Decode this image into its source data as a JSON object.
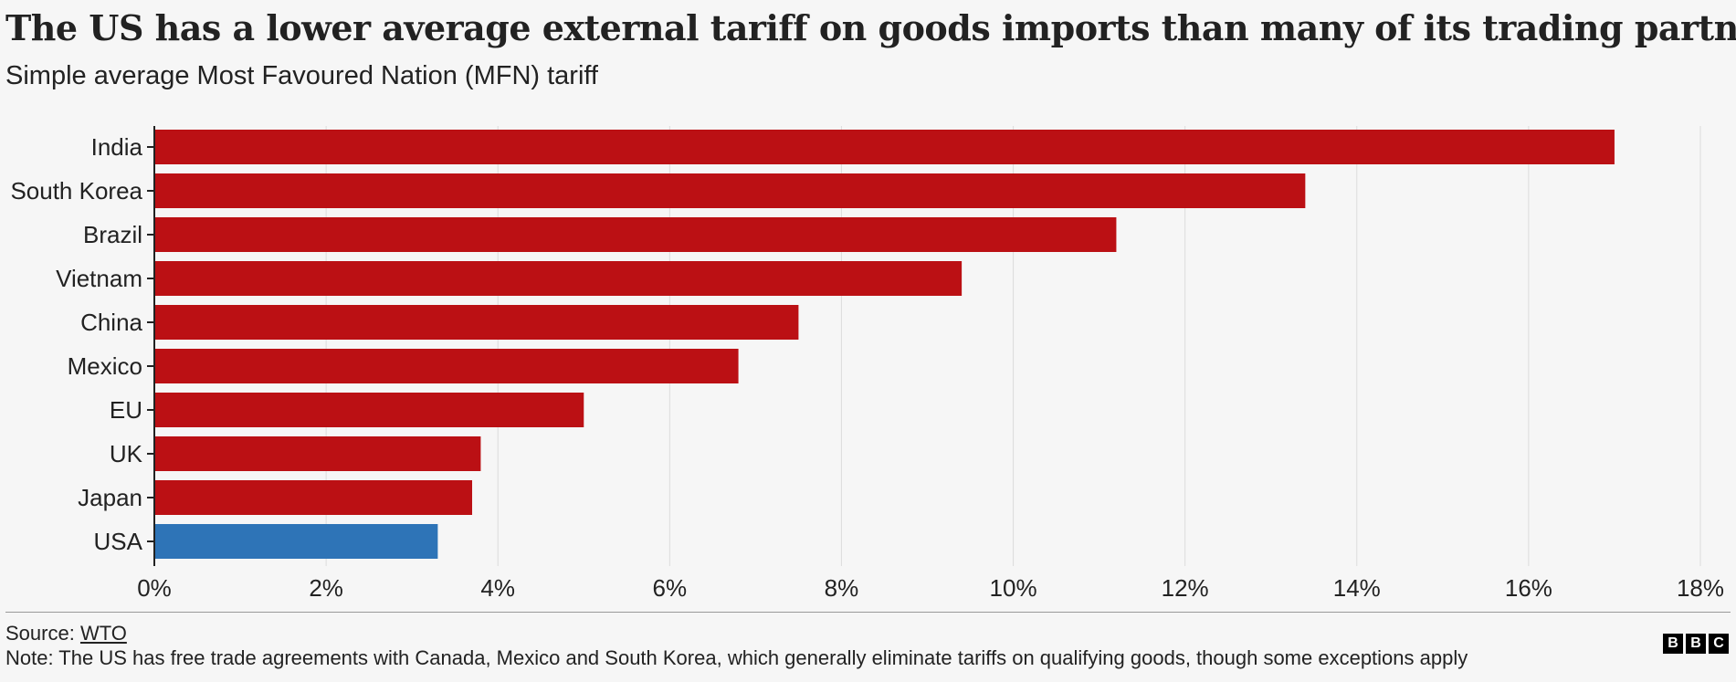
{
  "title": "The US has a lower average external tariff on goods imports than many of its trading partners",
  "subtitle": "Simple average Most Favoured Nation (MFN) tariff",
  "chart_data": {
    "type": "bar",
    "orientation": "horizontal",
    "categories": [
      "India",
      "South Korea",
      "Brazil",
      "Vietnam",
      "China",
      "Mexico",
      "EU",
      "UK",
      "Japan",
      "USA"
    ],
    "values": [
      17.0,
      13.4,
      11.2,
      9.4,
      7.5,
      6.8,
      5.0,
      3.8,
      3.7,
      3.3
    ],
    "x_ticks": [
      "0%",
      "2%",
      "4%",
      "6%",
      "8%",
      "10%",
      "12%",
      "14%",
      "16%",
      "18%"
    ],
    "xlim": [
      0,
      18
    ],
    "grid": "vertical",
    "colors": {
      "default": "#bb1014",
      "highlight": "#2e74b7",
      "highlight_category": "USA"
    }
  },
  "footer": {
    "source_prefix": "Source: ",
    "source_link": "WTO",
    "note": "Note: The US has free trade agreements with Canada, Mexico and South Korea, which generally eliminate tariffs on qualifying goods, though some exceptions apply",
    "logo_letters": [
      "B",
      "B",
      "C"
    ]
  }
}
